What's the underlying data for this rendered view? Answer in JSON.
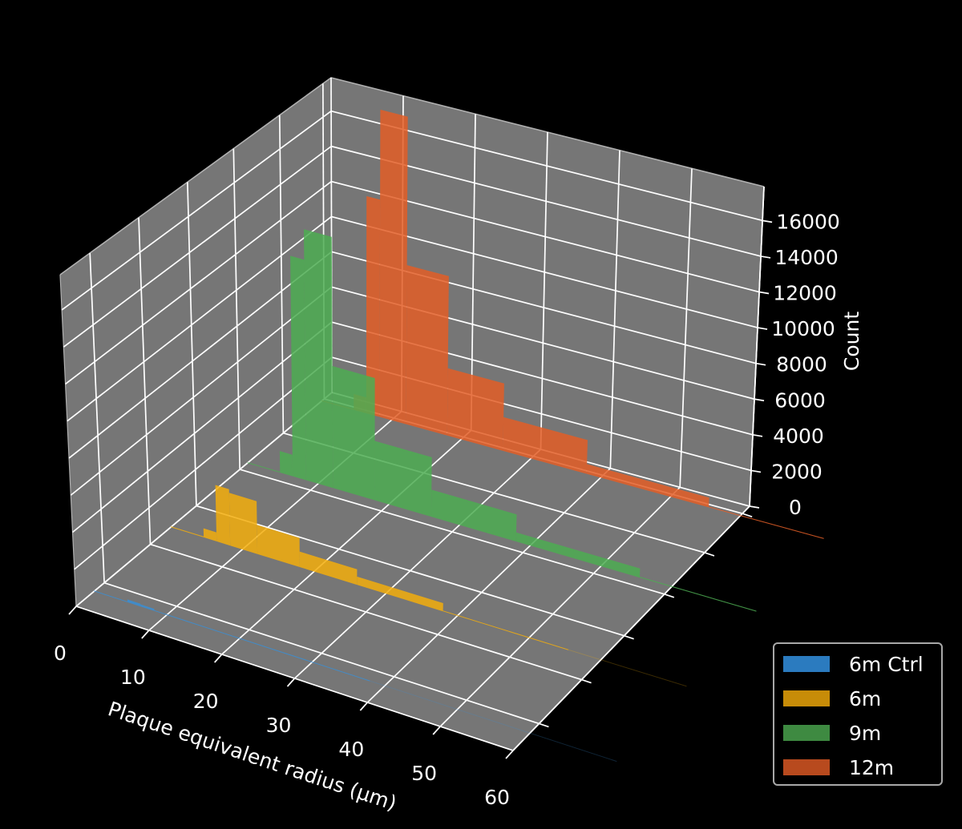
{
  "chart_data": {
    "type": "bar",
    "projection": "3d",
    "xlabel": "Plaque equivalent radius (µm)",
    "ylabel": "",
    "zlabel": "Count",
    "xlim": [
      0,
      60
    ],
    "zlim": [
      0,
      17900
    ],
    "x_ticks": [
      "0",
      "10",
      "20",
      "30",
      "40",
      "50",
      "60"
    ],
    "z_ticks": [
      "0",
      "2000",
      "4000",
      "6000",
      "8000",
      "10000",
      "12000",
      "14000",
      "16000"
    ],
    "grid": true,
    "legend_position": "lower-right",
    "bin_edges": [
      0,
      4.6,
      6.4,
      8.3,
      12.1,
      18,
      26,
      38,
      55.5,
      72
    ],
    "series": [
      {
        "name": "6m Ctrl",
        "color": "#3a8fd6",
        "legend_color": "#2b7bbf",
        "values": [
          20,
          150,
          120,
          30,
          10,
          3,
          1,
          0,
          0
        ]
      },
      {
        "name": "6m",
        "color": "#f3ae0d",
        "legend_color": "#c78c08",
        "values": [
          50,
          500,
          3100,
          2900,
          1600,
          850,
          450,
          30,
          0
        ]
      },
      {
        "name": "9m",
        "color": "#4ead52",
        "legend_color": "#3e8a41",
        "values": [
          30,
          1200,
          12300,
          14000,
          6800,
          3300,
          1500,
          500,
          30
        ]
      },
      {
        "name": "12m",
        "color": "#e35e27",
        "legend_color": "#b84a1e",
        "values": [
          30,
          900,
          12300,
          17400,
          9000,
          3800,
          1900,
          550,
          50
        ]
      }
    ],
    "pane_color": "#767676",
    "background": "#000000"
  }
}
